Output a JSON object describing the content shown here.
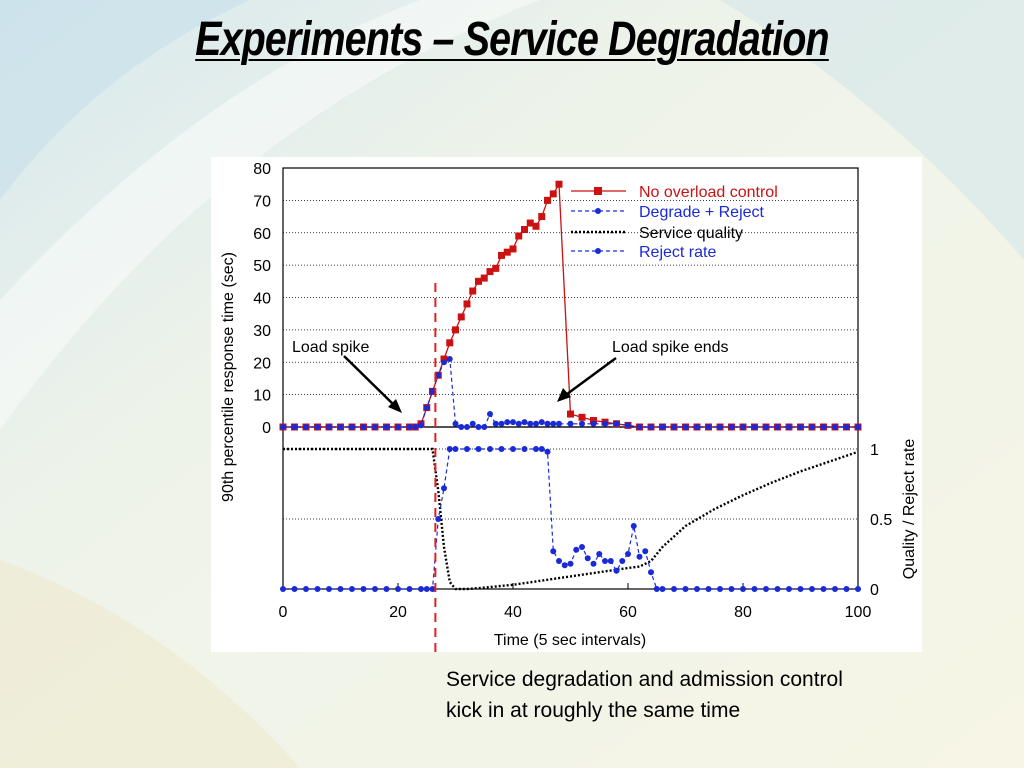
{
  "slide": {
    "title": "Experiments – Service Degradation",
    "caption": "Service degradation and admission control kick in at roughly the same time"
  },
  "colors": {
    "no_overload": "#cc1111",
    "degrade_reject": "#1a2ad6",
    "quality": "#000000",
    "marker_line": "#dd2222"
  },
  "chart_data": [
    {
      "type": "line",
      "xlabel": "",
      "ylabel": "90th percentile response time (sec)",
      "xlim": [
        0,
        100
      ],
      "ylim": [
        0,
        80
      ],
      "yticks": [
        0,
        10,
        20,
        30,
        40,
        50,
        60,
        70,
        80
      ],
      "grid": true,
      "legend_position": "top-right",
      "series": [
        {
          "name": "No overload control",
          "style": "solid-square",
          "x": [
            0,
            2,
            4,
            6,
            8,
            10,
            12,
            14,
            16,
            18,
            20,
            22,
            23,
            24,
            25,
            26,
            27,
            28,
            29,
            30,
            31,
            32,
            33,
            34,
            35,
            36,
            37,
            38,
            39,
            40,
            41,
            42,
            43,
            44,
            45,
            46,
            47,
            48,
            50,
            52,
            54,
            56,
            58,
            60,
            62,
            64,
            66,
            68,
            70,
            72,
            74,
            76,
            78,
            80,
            82,
            84,
            86,
            88,
            90,
            92,
            94,
            96,
            98,
            100
          ],
          "y": [
            0,
            0,
            0,
            0,
            0,
            0,
            0,
            0,
            0,
            0,
            0,
            0,
            0,
            1,
            6,
            11,
            16,
            21,
            26,
            30,
            34,
            38,
            42,
            45,
            46,
            48,
            49,
            53,
            54,
            55,
            59,
            61,
            63,
            62,
            65,
            70,
            72,
            75,
            4,
            3,
            2,
            1.5,
            1,
            0.5,
            0,
            0,
            0,
            0,
            0,
            0,
            0,
            0,
            0,
            0,
            0,
            0,
            0,
            0,
            0,
            0,
            0,
            0,
            0,
            0
          ]
        },
        {
          "name": "Degrade + Reject",
          "style": "dashed-dot",
          "x": [
            0,
            2,
            4,
            6,
            8,
            10,
            12,
            14,
            16,
            18,
            20,
            22,
            23,
            24,
            25,
            26,
            27,
            28,
            29,
            30,
            31,
            32,
            33,
            34,
            35,
            36,
            37,
            38,
            39,
            40,
            41,
            42,
            43,
            44,
            45,
            46,
            47,
            48,
            50,
            52,
            54,
            56,
            58,
            60,
            62,
            64,
            66,
            68,
            70,
            72,
            74,
            76,
            78,
            80,
            82,
            84,
            86,
            88,
            90,
            92,
            94,
            96,
            98,
            100
          ],
          "y": [
            0,
            0,
            0,
            0,
            0,
            0,
            0,
            0,
            0,
            0,
            0,
            0,
            0,
            0.5,
            6,
            11,
            16,
            20,
            21,
            1,
            0,
            0,
            1,
            0,
            0,
            4,
            1,
            1,
            1.5,
            1.5,
            1,
            1.5,
            1,
            1,
            1.5,
            1,
            1,
            1,
            1,
            1,
            1,
            1,
            1,
            0.5,
            0,
            0,
            0,
            0,
            0,
            0,
            0,
            0,
            0,
            0,
            0,
            0,
            0,
            0,
            0,
            0,
            0,
            0,
            0,
            0
          ]
        }
      ],
      "annotations": [
        {
          "text": "Load spike",
          "x": 22,
          "y": 4
        },
        {
          "text": "Load spike ends",
          "x": 47,
          "y": 7
        }
      ],
      "vertical_marker_x": 26.5
    },
    {
      "type": "line",
      "xlabel": "Time (5 sec intervals)",
      "ylabel": "Quality / Reject rate",
      "xlim": [
        0,
        100
      ],
      "ylim": [
        0,
        1
      ],
      "xticks": [
        0,
        20,
        40,
        60,
        80,
        100
      ],
      "yticks": [
        0,
        0.5,
        1
      ],
      "grid": true,
      "series": [
        {
          "name": "Service quality",
          "style": "dotted",
          "x": [
            0,
            10,
            20,
            26,
            27,
            28,
            29,
            30,
            32,
            35,
            40,
            45,
            50,
            55,
            60,
            62,
            64,
            66,
            70,
            75,
            80,
            85,
            90,
            95,
            100
          ],
          "y": [
            1,
            1,
            1,
            1,
            0.7,
            0.3,
            0.05,
            0,
            0,
            0.01,
            0.03,
            0.06,
            0.09,
            0.12,
            0.15,
            0.16,
            0.2,
            0.3,
            0.45,
            0.57,
            0.67,
            0.76,
            0.84,
            0.91,
            0.98
          ]
        },
        {
          "name": "Reject rate",
          "style": "dashed-dot",
          "x": [
            0,
            2,
            4,
            6,
            8,
            10,
            12,
            14,
            16,
            18,
            20,
            22,
            24,
            25,
            26,
            27,
            28,
            29,
            30,
            32,
            34,
            36,
            38,
            40,
            42,
            44,
            45,
            46,
            47,
            48,
            49,
            50,
            51,
            52,
            53,
            54,
            55,
            56,
            57,
            58,
            59,
            60,
            61,
            62,
            63,
            64,
            65,
            66,
            68,
            70,
            72,
            74,
            76,
            78,
            80,
            82,
            84,
            86,
            88,
            90,
            92,
            94,
            96,
            98,
            100
          ],
          "y": [
            0,
            0,
            0,
            0,
            0,
            0,
            0,
            0,
            0,
            0,
            0,
            0,
            0,
            0,
            0,
            0.5,
            0.72,
            1,
            1,
            1,
            1,
            1,
            1,
            1,
            1,
            1,
            1,
            0.98,
            0.27,
            0.2,
            0.17,
            0.18,
            0.28,
            0.3,
            0.22,
            0.18,
            0.25,
            0.2,
            0.2,
            0.13,
            0.2,
            0.25,
            0.45,
            0.23,
            0.27,
            0.12,
            0,
            0,
            0,
            0,
            0,
            0,
            0,
            0,
            0,
            0,
            0,
            0,
            0,
            0,
            0,
            0,
            0,
            0,
            0
          ]
        }
      ]
    }
  ]
}
